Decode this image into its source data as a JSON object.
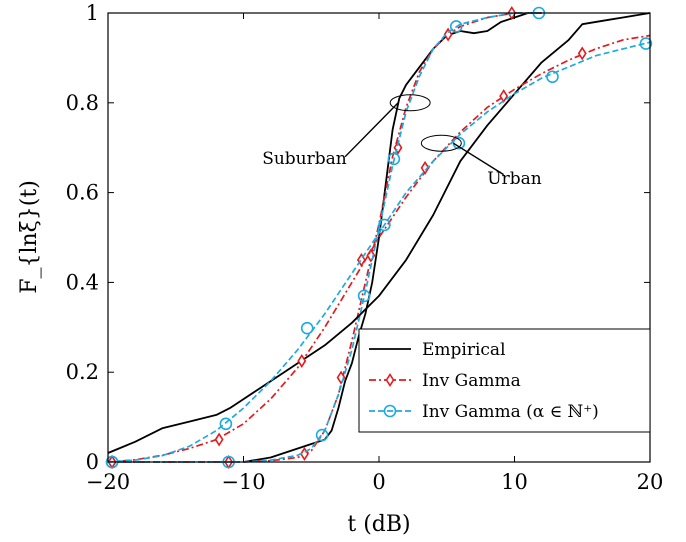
{
  "chart_data": {
    "type": "line",
    "title": "",
    "xlabel": "t (dB)",
    "ylabel": "F_{lnξ}(t)",
    "xlim": [
      -20,
      20
    ],
    "ylim": [
      0,
      1
    ],
    "x_ticks": [
      -20,
      -10,
      0,
      10,
      20
    ],
    "x_tick_labels": [
      "−20",
      "−10",
      "0",
      "10",
      "20"
    ],
    "y_ticks": [
      0,
      0.2,
      0.4,
      0.6,
      0.8,
      1
    ],
    "y_tick_labels": [
      "0",
      "0.2",
      "0.4",
      "0.6",
      "0.8",
      "1"
    ],
    "grid": false,
    "legend_position": "bottom-right",
    "legend": [
      {
        "label": "Empirical",
        "color": "#000000",
        "dash": "solid",
        "marker": "none"
      },
      {
        "label": "Inv Gamma",
        "color": "#e41a1c",
        "dash": "dashdot",
        "marker": "diamond"
      },
      {
        "label": "Inv Gamma (α ∈ ℕ⁺)",
        "color": "#1eaadf",
        "dash": "dashed",
        "marker": "circle"
      }
    ],
    "annotations": [
      {
        "text": "Suburban",
        "x": -5.5,
        "y": 0.675,
        "ellipse_center": [
          2.3,
          0.8
        ],
        "leader_to": [
          -2.5,
          0.68
        ]
      },
      {
        "text": "Urban",
        "x": 10.0,
        "y": 0.63,
        "ellipse_center": [
          4.6,
          0.71
        ],
        "leader_to": [
          9.2,
          0.64
        ]
      }
    ],
    "series": [
      {
        "group": "Suburban",
        "legend": "Empirical",
        "color": "#000000",
        "dash": "solid",
        "marker": "none",
        "x": [
          -10,
          -8,
          -6,
          -5,
          -4.5,
          -4,
          -3.5,
          -3,
          -2.5,
          -2,
          -1.5,
          -1,
          -0.5,
          0,
          0.5,
          1,
          1.5,
          2,
          3,
          4,
          5,
          6,
          7,
          8,
          9,
          10,
          11,
          12
        ],
        "y": [
          0,
          0.01,
          0.03,
          0.04,
          0.045,
          0.05,
          0.07,
          0.12,
          0.18,
          0.22,
          0.28,
          0.33,
          0.4,
          0.5,
          0.62,
          0.74,
          0.81,
          0.84,
          0.88,
          0.92,
          0.95,
          0.96,
          0.955,
          0.96,
          0.98,
          0.99,
          1.0,
          1.0
        ]
      },
      {
        "group": "Suburban",
        "legend": "Inv Gamma",
        "color": "#e41a1c",
        "dash": "dashdot",
        "marker": "diamond",
        "x": [
          -20,
          -16,
          -12,
          -10,
          -8,
          -6,
          -5,
          -4,
          -3,
          -2,
          -1,
          0,
          1,
          2,
          3,
          4,
          5,
          6,
          8,
          10,
          12
        ],
        "y": [
          0,
          0,
          0,
          0,
          0.003,
          0.01,
          0.025,
          0.07,
          0.15,
          0.27,
          0.4,
          0.53,
          0.68,
          0.79,
          0.87,
          0.92,
          0.95,
          0.97,
          0.99,
          1.0,
          1.0
        ],
        "marker_x": [
          -19.7,
          -11.1,
          -5.5,
          -2.8,
          -0.6,
          1.4,
          5.1,
          9.8
        ],
        "marker_y": [
          0,
          0,
          0.018,
          0.188,
          0.46,
          0.7,
          0.952,
          1.0
        ]
      },
      {
        "group": "Suburban",
        "legend": "Inv Gamma (α ∈ ℕ⁺)",
        "color": "#1eaadf",
        "dash": "dashed",
        "marker": "circle",
        "x": [
          -20,
          -16,
          -12,
          -10,
          -8,
          -6,
          -5,
          -4,
          -3,
          -2,
          -1,
          0,
          1,
          2,
          3,
          4,
          5,
          6,
          8,
          10,
          12
        ],
        "y": [
          0,
          0,
          0,
          0,
          0.004,
          0.015,
          0.03,
          0.07,
          0.15,
          0.25,
          0.38,
          0.52,
          0.66,
          0.78,
          0.86,
          0.92,
          0.955,
          0.975,
          0.99,
          1.0,
          1.0
        ],
        "marker_x": [
          -19.7,
          -11.1,
          -4.2,
          -1.1,
          1.1,
          5.7,
          11.8
        ],
        "marker_y": [
          0,
          0,
          0.06,
          0.37,
          0.675,
          0.97,
          1.0
        ]
      },
      {
        "group": "Urban",
        "legend": "Empirical",
        "color": "#000000",
        "dash": "solid",
        "marker": "none",
        "x": [
          -20,
          -18,
          -16,
          -14,
          -12,
          -11,
          -10,
          -8,
          -6,
          -4,
          -2,
          0,
          2,
          4,
          6,
          8,
          10,
          12,
          14,
          15,
          17,
          18,
          20
        ],
        "y": [
          0.02,
          0.045,
          0.075,
          0.09,
          0.105,
          0.12,
          0.14,
          0.18,
          0.22,
          0.26,
          0.31,
          0.37,
          0.45,
          0.55,
          0.67,
          0.75,
          0.82,
          0.89,
          0.94,
          0.975,
          0.985,
          0.99,
          1.0
        ]
      },
      {
        "group": "Urban",
        "legend": "Inv Gamma",
        "color": "#e41a1c",
        "dash": "dashdot",
        "marker": "diamond",
        "x": [
          -20,
          -18,
          -16,
          -14,
          -12,
          -10,
          -8,
          -6,
          -4,
          -2,
          0,
          2,
          4,
          6,
          8,
          10,
          12,
          14,
          16,
          18,
          20
        ],
        "y": [
          0,
          0.005,
          0.015,
          0.03,
          0.05,
          0.085,
          0.14,
          0.21,
          0.3,
          0.4,
          0.5,
          0.59,
          0.67,
          0.735,
          0.79,
          0.83,
          0.865,
          0.895,
          0.92,
          0.94,
          0.95
        ],
        "marker_x": [
          -19.7,
          -11.8,
          -5.7,
          -1.3,
          3.4,
          9.2,
          15.0
        ],
        "marker_y": [
          0,
          0.05,
          0.225,
          0.45,
          0.655,
          0.815,
          0.91
        ]
      },
      {
        "group": "Urban",
        "legend": "Inv Gamma (α ∈ ℕ⁺)",
        "color": "#1eaadf",
        "dash": "dashed",
        "marker": "circle",
        "x": [
          -20,
          -18,
          -16,
          -14,
          -12,
          -10,
          -8,
          -6,
          -4,
          -2,
          0,
          2,
          4,
          6,
          8,
          10,
          12,
          14,
          16,
          18,
          20
        ],
        "y": [
          0,
          0.004,
          0.014,
          0.035,
          0.07,
          0.12,
          0.18,
          0.25,
          0.33,
          0.42,
          0.51,
          0.6,
          0.67,
          0.73,
          0.78,
          0.82,
          0.855,
          0.88,
          0.905,
          0.92,
          0.935
        ],
        "marker_x": [
          -19.7,
          -11.3,
          -5.3,
          0.4,
          5.9,
          12.8,
          19.7
        ],
        "marker_y": [
          0,
          0.085,
          0.298,
          0.528,
          0.71,
          0.858,
          0.932
        ]
      }
    ]
  }
}
